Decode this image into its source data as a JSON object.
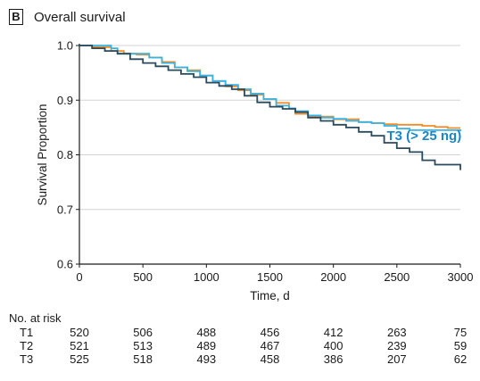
{
  "panel": {
    "letter": "B",
    "title": "Overall survival"
  },
  "chart_data": {
    "type": "line",
    "title": "Overall survival",
    "xlabel": "Time, d",
    "ylabel": "Survival Proportion",
    "xlim": [
      0,
      3000
    ],
    "ylim": [
      0.6,
      1.0
    ],
    "xticks": [
      0,
      500,
      1000,
      1500,
      2000,
      2500,
      3000
    ],
    "yticks": [
      0.6,
      0.7,
      0.8,
      0.9,
      1.0
    ],
    "ytick_labels": [
      "0.6",
      "0.7",
      "0.8",
      "0.9",
      "1.0"
    ],
    "grid": "horizontal",
    "annotation": {
      "text": "T3 (> 25 ng)",
      "x": 2420,
      "y": 0.827,
      "color": "#1b86c6"
    },
    "series": [
      {
        "key": "T1",
        "color": "#f28c28",
        "x": [
          0,
          100,
          250,
          350,
          450,
          550,
          650,
          750,
          850,
          950,
          1050,
          1150,
          1250,
          1350,
          1450,
          1550,
          1650,
          1700,
          1800,
          1900,
          2000,
          2100,
          2200,
          2300,
          2400,
          2500,
          2600,
          2700,
          2800,
          2900,
          3000
        ],
        "y": [
          1.0,
          0.997,
          0.99,
          0.985,
          0.983,
          0.978,
          0.97,
          0.96,
          0.955,
          0.945,
          0.935,
          0.925,
          0.918,
          0.91,
          0.902,
          0.895,
          0.885,
          0.875,
          0.87,
          0.87,
          0.865,
          0.865,
          0.86,
          0.858,
          0.856,
          0.855,
          0.855,
          0.853,
          0.851,
          0.849,
          0.849
        ]
      },
      {
        "key": "T3",
        "color": "#37b4e6",
        "x": [
          0,
          100,
          250,
          300,
          450,
          550,
          650,
          750,
          850,
          950,
          1050,
          1150,
          1250,
          1350,
          1450,
          1550,
          1650,
          1700,
          1800,
          1900,
          2000,
          2100,
          2200,
          2300,
          2400,
          2500,
          2600,
          2700,
          2800,
          2900,
          3000
        ],
        "y": [
          1.0,
          1.0,
          0.995,
          0.985,
          0.985,
          0.978,
          0.968,
          0.96,
          0.953,
          0.945,
          0.935,
          0.928,
          0.92,
          0.912,
          0.902,
          0.89,
          0.885,
          0.88,
          0.872,
          0.868,
          0.866,
          0.862,
          0.86,
          0.858,
          0.853,
          0.848,
          0.845,
          0.845,
          0.845,
          0.845,
          0.843
        ]
      },
      {
        "key": "T2",
        "color": "#2a4a5e",
        "x": [
          0,
          100,
          200,
          300,
          400,
          500,
          600,
          700,
          800,
          900,
          1000,
          1100,
          1200,
          1300,
          1400,
          1500,
          1600,
          1700,
          1800,
          1900,
          2000,
          2100,
          2200,
          2300,
          2400,
          2500,
          2600,
          2700,
          2800,
          2900,
          3000,
          3000
        ],
        "y": [
          1.0,
          0.995,
          0.99,
          0.985,
          0.975,
          0.968,
          0.962,
          0.955,
          0.948,
          0.942,
          0.932,
          0.926,
          0.92,
          0.908,
          0.896,
          0.888,
          0.884,
          0.878,
          0.868,
          0.862,
          0.855,
          0.85,
          0.842,
          0.835,
          0.822,
          0.812,
          0.805,
          0.79,
          0.782,
          0.782,
          0.78,
          0.772
        ]
      }
    ]
  },
  "risk_table": {
    "header": "No. at risk",
    "times": [
      0,
      500,
      1000,
      1500,
      2000,
      2500,
      3000
    ],
    "rows": [
      {
        "label": "T1",
        "values": [
          "520",
          "506",
          "488",
          "456",
          "412",
          "263",
          "75"
        ]
      },
      {
        "label": "T2",
        "values": [
          "521",
          "513",
          "489",
          "467",
          "400",
          "239",
          "59"
        ]
      },
      {
        "label": "T3",
        "values": [
          "525",
          "518",
          "493",
          "458",
          "386",
          "207",
          "62"
        ]
      }
    ]
  }
}
